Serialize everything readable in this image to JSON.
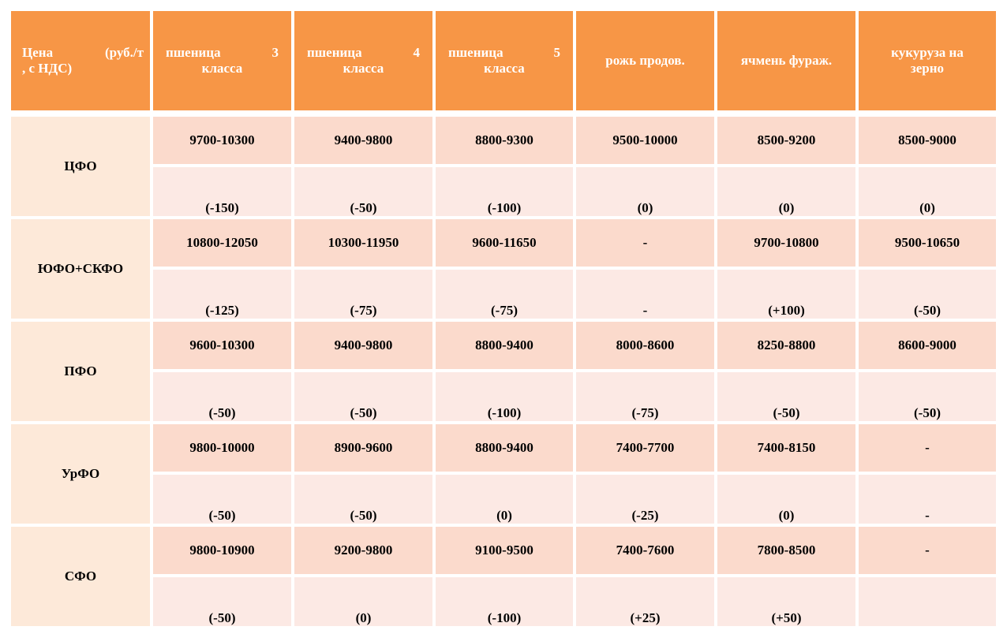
{
  "header": {
    "price_label": [
      "Цена",
      "(руб./т",
      ", с НДС)"
    ],
    "columns": [
      {
        "w1": "пшеница",
        "w2": "3",
        "w3": "класса"
      },
      {
        "w1": "пшеница",
        "w2": "4",
        "w3": "класса"
      },
      {
        "w1": "пшеница",
        "w2": "5",
        "w3": "класса"
      },
      {
        "line1": "рожь продов.",
        "line2": ""
      },
      {
        "line1": "ячмень фураж.",
        "line2": ""
      },
      {
        "line1": "кукуруза на",
        "line2": "зерно"
      }
    ]
  },
  "regions": [
    {
      "name": "ЦФО",
      "prices": [
        "9700-10300",
        "9400-9800",
        "8800-9300",
        "9500-10000",
        "8500-9200",
        "8500-9000"
      ],
      "changes": [
        "(-150)",
        "(-50)",
        "(-100)",
        "(0)",
        "(0)",
        "(0)"
      ]
    },
    {
      "name": "ЮФО+СКФО",
      "prices": [
        "10800-12050",
        "10300-11950",
        "9600-11650",
        "-",
        "9700-10800",
        "9500-10650"
      ],
      "changes": [
        "(-125)",
        "(-75)",
        "(-75)",
        "-",
        "(+100)",
        "(-50)"
      ]
    },
    {
      "name": "ПФО",
      "prices": [
        "9600-10300",
        "9400-9800",
        "8800-9400",
        "8000-8600",
        "8250-8800",
        "8600-9000"
      ],
      "changes": [
        "(-50)",
        "(-50)",
        "(-100)",
        "(-75)",
        "(-50)",
        "(-50)"
      ]
    },
    {
      "name": "УрФО",
      "prices": [
        "9800-10000",
        "8900-9600",
        "8800-9400",
        "7400-7700",
        "7400-8150",
        "-"
      ],
      "changes": [
        "(-50)",
        "(-50)",
        "(0)",
        "(-25)",
        "(0)",
        "-"
      ]
    },
    {
      "name": "СФО",
      "prices": [
        "9800-10900",
        "9200-9800",
        "9100-9500",
        "7400-7600",
        "7800-8500",
        "-"
      ],
      "changes": [
        "(-50)",
        "(0)",
        "(-100)",
        "(+25)",
        "(+50)",
        ""
      ]
    }
  ]
}
